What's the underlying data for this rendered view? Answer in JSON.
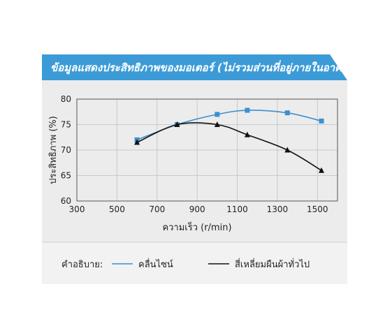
{
  "chart_data": {
    "type": "line",
    "title": "ข้อมูลแสดงประสิทธิภาพของมอเตอร์ (ไม่รวมส่วนที่อยู่ภายในอาคาร)",
    "xlabel": "ความเร็ว (r/min)",
    "ylabel": "ประสิทธิภาพ (%)",
    "xlim": [
      300,
      1600
    ],
    "ylim": [
      60,
      80
    ],
    "xticks": [
      "300",
      "500",
      "700",
      "900",
      "1100",
      "1300",
      "1500"
    ],
    "yticks": [
      "60",
      "65",
      "70",
      "75",
      "80"
    ],
    "grid": true,
    "legend_title": "คำอธิบาย:",
    "legend_placement": "bottom",
    "series": [
      {
        "name": "คลื่นไซน์",
        "color": "#3c8fce",
        "marker": "square",
        "x": [
          600,
          800,
          1000,
          1150,
          1350,
          1520
        ],
        "y": [
          72.0,
          75.0,
          77.0,
          77.8,
          77.3,
          75.7
        ]
      },
      {
        "name": "สี่เหลี่ยมผืนผ้าทั่วไป",
        "color": "#111111",
        "marker": "triangle",
        "x": [
          600,
          800,
          1000,
          1150,
          1350,
          1520
        ],
        "y": [
          71.5,
          75.0,
          75.0,
          73.0,
          70.0,
          66.0
        ]
      }
    ]
  }
}
